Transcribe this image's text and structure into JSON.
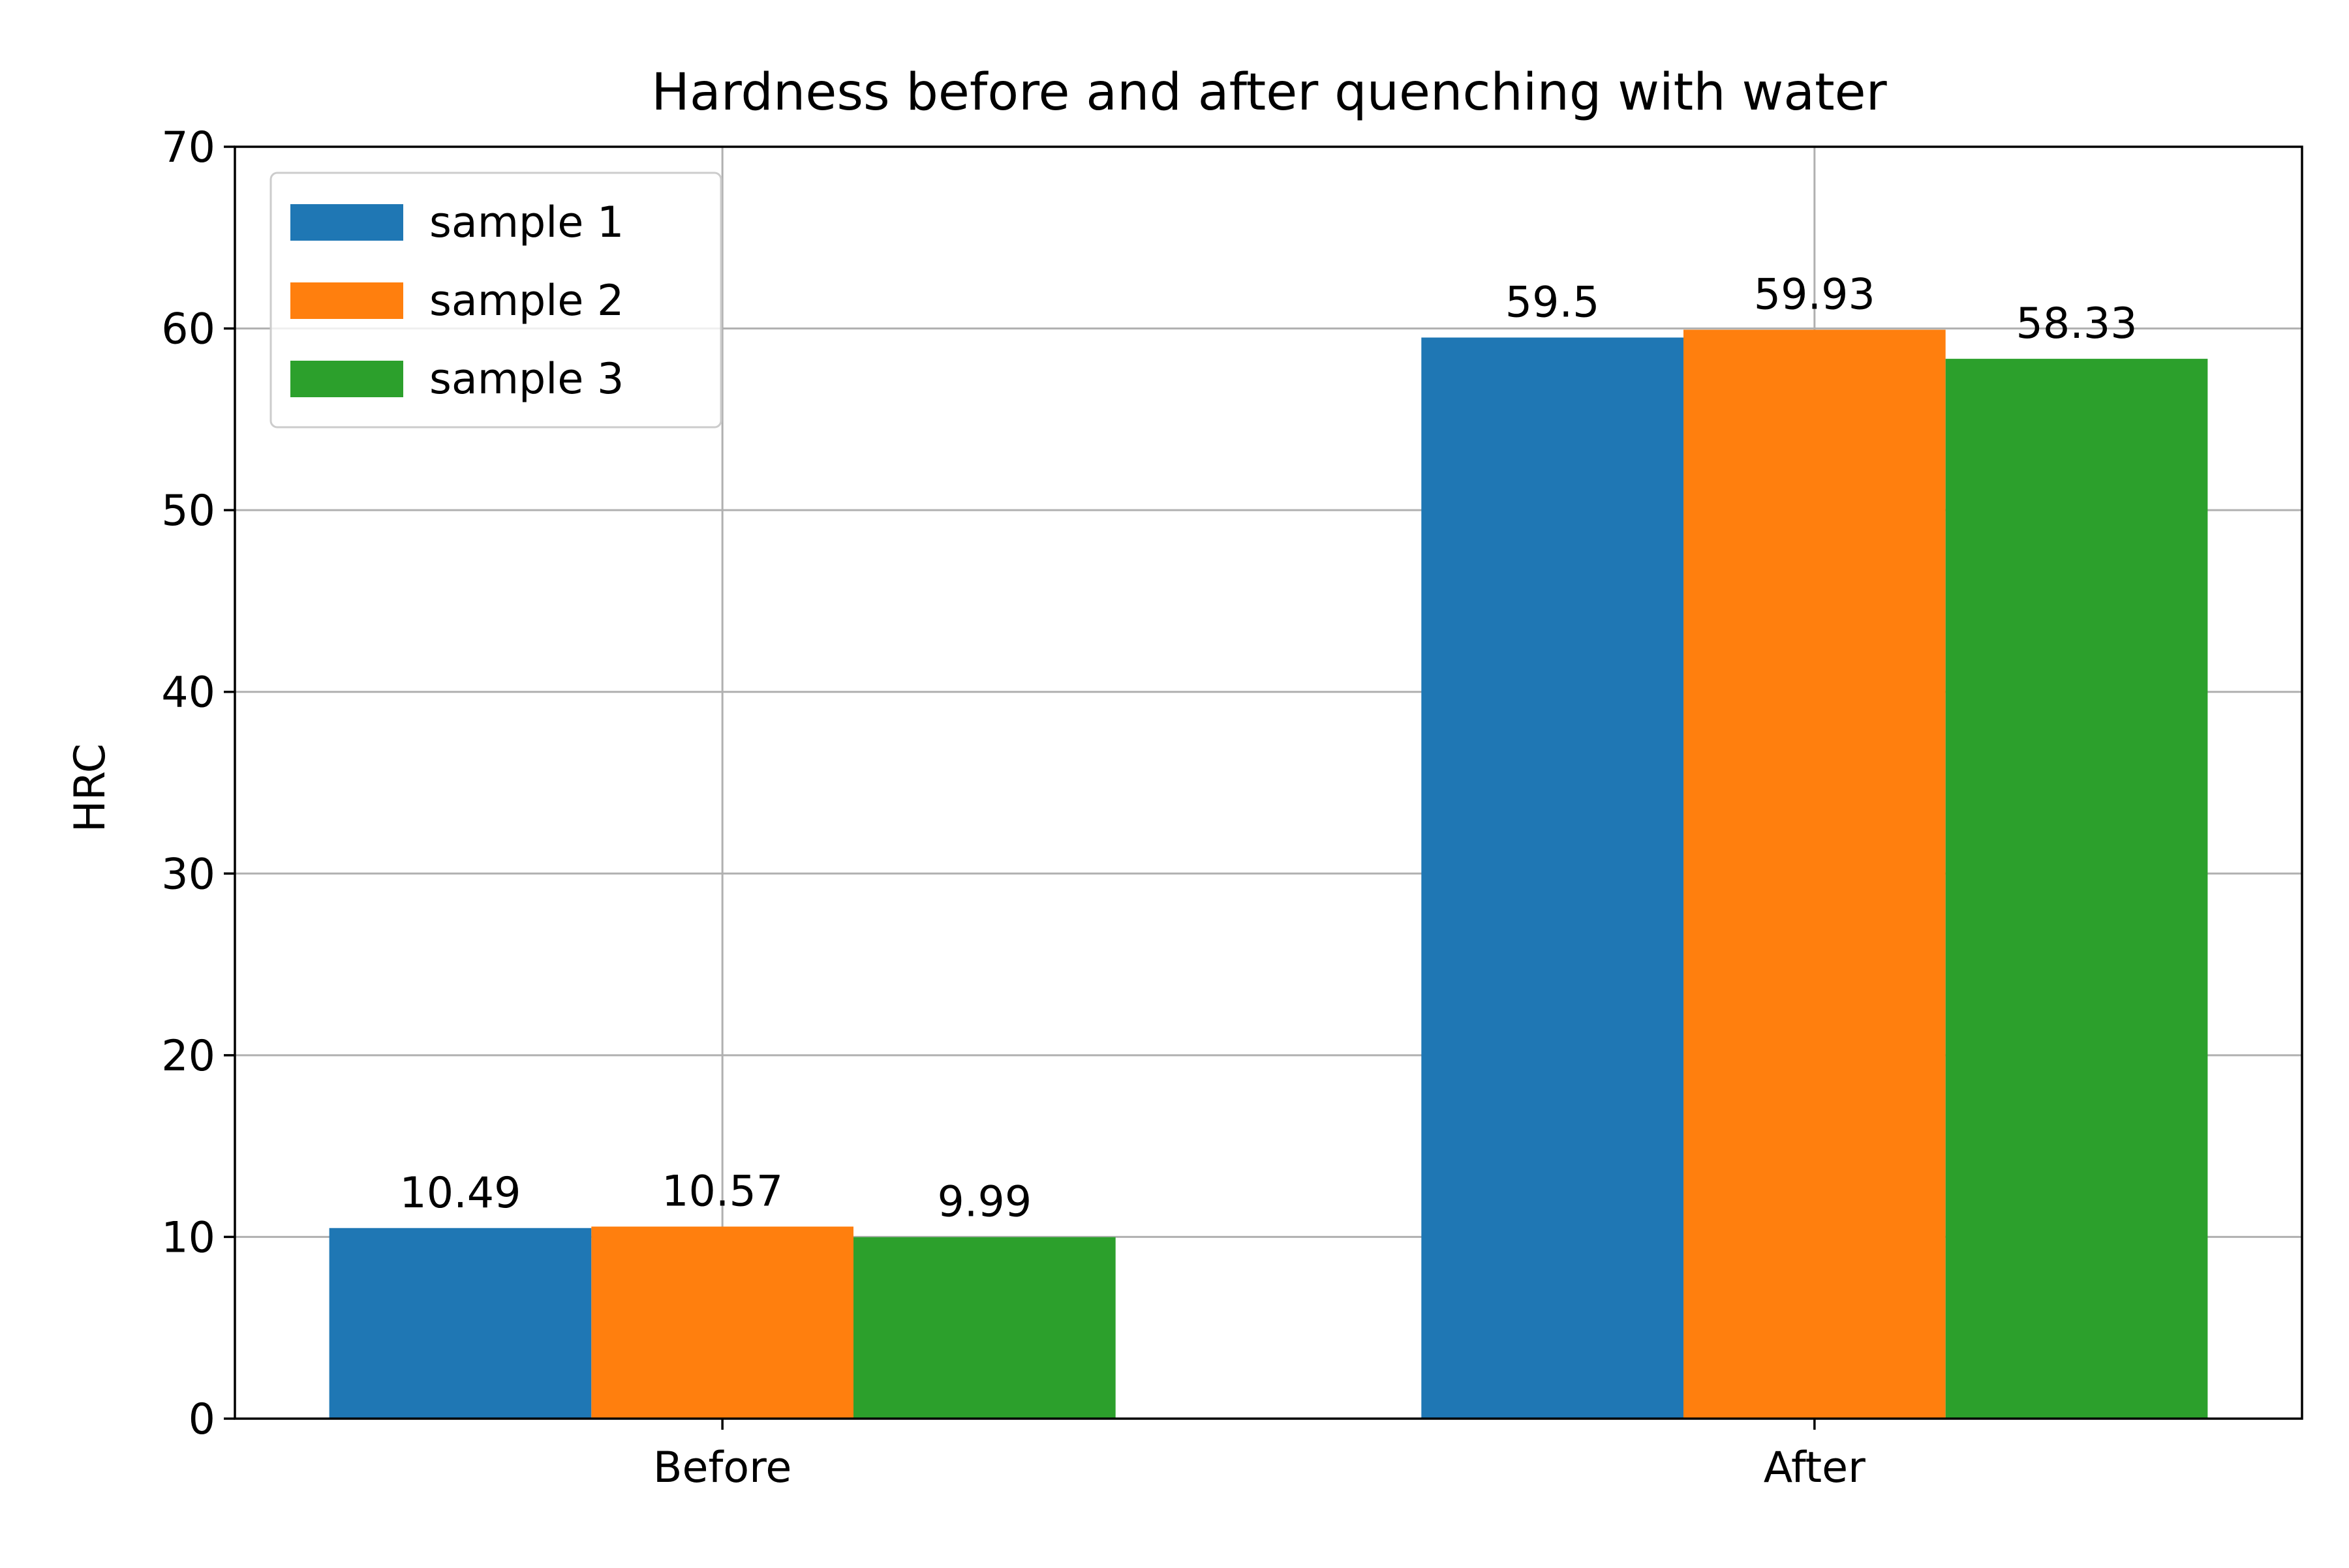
{
  "chart_data": {
    "type": "bar",
    "title": "Hardness before and after quenching with water",
    "xlabel": "",
    "ylabel": "HRC",
    "categories": [
      "Before",
      "After"
    ],
    "series": [
      {
        "name": "sample 1",
        "values": [
          10.49,
          59.5
        ],
        "value_labels": [
          "10.49",
          "59.5"
        ],
        "color": "#1f77b4"
      },
      {
        "name": "sample 2",
        "values": [
          10.57,
          59.93
        ],
        "value_labels": [
          "10.57",
          "59.93"
        ],
        "color": "#ff7f0e"
      },
      {
        "name": "sample 3",
        "values": [
          9.99,
          58.33
        ],
        "value_labels": [
          "9.99",
          "58.33"
        ],
        "color": "#2ca02c"
      }
    ],
    "ylim": [
      0,
      70
    ],
    "yticks": [
      "0",
      "10",
      "20",
      "30",
      "40",
      "50",
      "60",
      "70"
    ],
    "grid": true,
    "legend_position": "top-left"
  }
}
